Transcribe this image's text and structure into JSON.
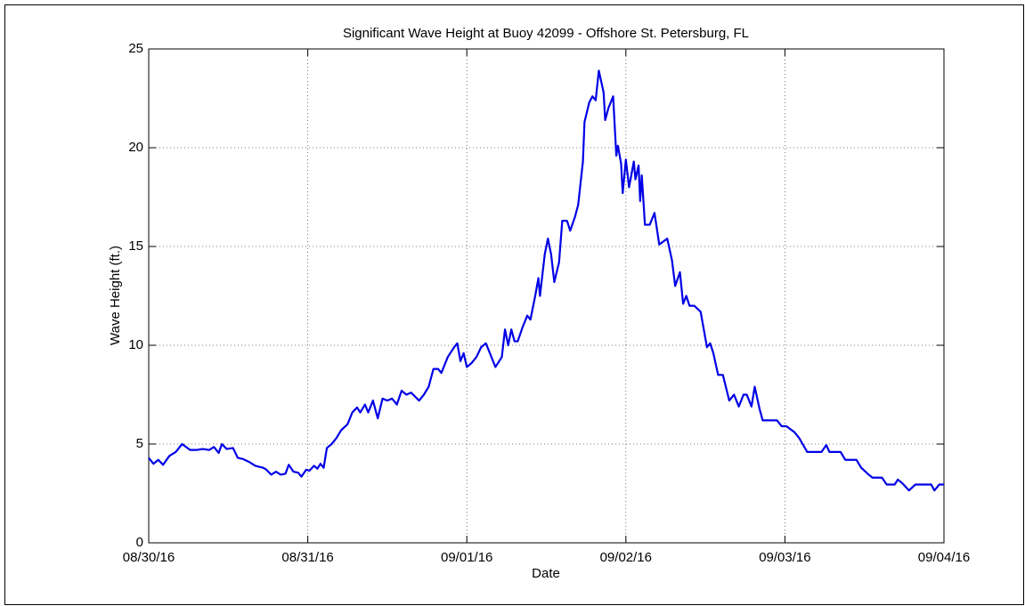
{
  "chart_data": {
    "type": "line",
    "title": "Significant Wave Height at Buoy 42099 - Offshore St. Petersburg, FL",
    "x_label": "Date",
    "y_label": "Wave Height (ft.)",
    "x": [
      0,
      0.03,
      0.06,
      0.09,
      0.13,
      0.17,
      0.21,
      0.26,
      0.3,
      0.34,
      0.38,
      0.41,
      0.44,
      0.46,
      0.49,
      0.53,
      0.56,
      0.59,
      0.63,
      0.67,
      0.72,
      0.74,
      0.77,
      0.8,
      0.83,
      0.86,
      0.88,
      0.91,
      0.94,
      0.96,
      0.99,
      1.01,
      1.04,
      1.06,
      1.08,
      1.1,
      1.12,
      1.15,
      1.18,
      1.21,
      1.25,
      1.28,
      1.31,
      1.33,
      1.36,
      1.38,
      1.41,
      1.44,
      1.47,
      1.5,
      1.53,
      1.56,
      1.59,
      1.62,
      1.65,
      1.7,
      1.73,
      1.76,
      1.79,
      1.82,
      1.84,
      1.88,
      1.92,
      1.94,
      1.96,
      1.98,
      2.0,
      2.03,
      2.06,
      2.09,
      2.12,
      2.15,
      2.18,
      2.22,
      2.24,
      2.26,
      2.28,
      2.3,
      2.32,
      2.35,
      2.38,
      2.4,
      2.43,
      2.45,
      2.46,
      2.49,
      2.51,
      2.53,
      2.55,
      2.58,
      2.6,
      2.63,
      2.65,
      2.68,
      2.7,
      2.73,
      2.74,
      2.77,
      2.79,
      2.81,
      2.83,
      2.86,
      2.87,
      2.89,
      2.92,
      2.94,
      2.95,
      2.97,
      2.98,
      3.0,
      3.02,
      3.05,
      3.06,
      3.08,
      3.09,
      3.1,
      3.12,
      3.15,
      3.18,
      3.21,
      3.26,
      3.29,
      3.31,
      3.34,
      3.36,
      3.38,
      3.4,
      3.43,
      3.47,
      3.51,
      3.53,
      3.55,
      3.58,
      3.61,
      3.65,
      3.68,
      3.71,
      3.74,
      3.76,
      3.79,
      3.81,
      3.84,
      3.86,
      3.95,
      3.98,
      4.01,
      4.06,
      4.09,
      4.14,
      4.23,
      4.26,
      4.28,
      4.35,
      4.38,
      4.45,
      4.48,
      4.52,
      4.55,
      4.61,
      4.64,
      4.69,
      4.71,
      4.74,
      4.78,
      4.82,
      4.92,
      4.94,
      4.97,
      5.0
    ],
    "series": [
      {
        "color": "#0000e6",
        "values": [
          4.3,
          4.0,
          4.2,
          3.95,
          4.4,
          4.6,
          5.0,
          4.7,
          4.7,
          4.75,
          4.7,
          4.85,
          4.55,
          5.0,
          4.75,
          4.8,
          4.3,
          4.25,
          4.1,
          3.9,
          3.8,
          3.7,
          3.45,
          3.6,
          3.45,
          3.5,
          3.95,
          3.6,
          3.55,
          3.35,
          3.7,
          3.65,
          3.9,
          3.75,
          4.0,
          3.8,
          4.8,
          5.0,
          5.3,
          5.7,
          6.0,
          6.6,
          6.85,
          6.6,
          7.0,
          6.6,
          7.2,
          6.3,
          7.3,
          7.2,
          7.3,
          7.0,
          7.7,
          7.5,
          7.6,
          7.2,
          7.5,
          7.9,
          8.8,
          8.8,
          8.6,
          9.4,
          9.9,
          10.1,
          9.2,
          9.6,
          8.9,
          9.1,
          9.4,
          9.9,
          10.1,
          9.5,
          8.9,
          9.4,
          10.8,
          10.0,
          10.8,
          10.2,
          10.2,
          10.9,
          11.5,
          11.3,
          12.5,
          13.4,
          12.5,
          14.6,
          15.4,
          14.6,
          13.2,
          14.2,
          16.3,
          16.3,
          15.8,
          16.5,
          17.1,
          19.3,
          21.3,
          22.3,
          22.6,
          22.4,
          23.9,
          22.8,
          21.4,
          22.0,
          22.6,
          19.6,
          20.1,
          19.2,
          17.7,
          19.4,
          18.0,
          19.3,
          18.4,
          19.1,
          17.3,
          18.6,
          16.1,
          16.1,
          16.7,
          15.1,
          15.4,
          14.3,
          13.0,
          13.7,
          12.1,
          12.5,
          12.0,
          12.0,
          11.7,
          9.9,
          10.1,
          9.6,
          8.5,
          8.5,
          7.2,
          7.5,
          6.9,
          7.5,
          7.5,
          6.9,
          7.9,
          6.8,
          6.2,
          6.2,
          5.9,
          5.9,
          5.6,
          5.3,
          4.6,
          4.6,
          4.95,
          4.6,
          4.6,
          4.2,
          4.2,
          3.8,
          3.5,
          3.3,
          3.3,
          2.95,
          2.95,
          3.2,
          3.0,
          2.65,
          2.95,
          2.95,
          2.65,
          2.95,
          2.95
        ]
      }
    ],
    "xlim": [
      0,
      5
    ],
    "xticks": [
      {
        "value": 0,
        "label": "08/30/16"
      },
      {
        "value": 1,
        "label": "08/31/16"
      },
      {
        "value": 2,
        "label": "09/01/16"
      },
      {
        "value": 3,
        "label": "09/02/16"
      },
      {
        "value": 4,
        "label": "09/03/16"
      },
      {
        "value": 5,
        "label": "09/04/16"
      }
    ],
    "ylim": [
      0,
      25
    ],
    "yticks": [
      0,
      5,
      10,
      15,
      20,
      25
    ],
    "grid": true
  }
}
